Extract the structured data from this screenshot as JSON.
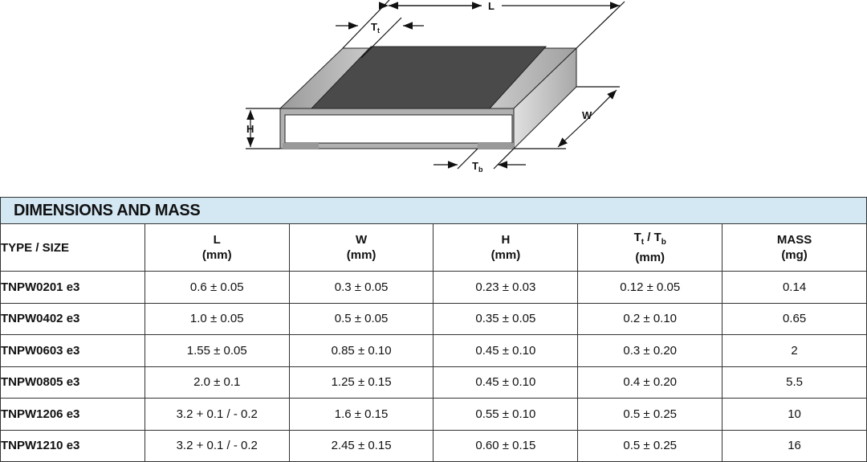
{
  "diagram": {
    "labels": {
      "L": "L",
      "W": "W",
      "H": "H",
      "Tt_main": "T",
      "Tt_sub": "t",
      "Tb_main": "T",
      "Tb_sub": "b"
    }
  },
  "table": {
    "title": "DIMENSIONS AND MASS",
    "columns": [
      {
        "label": "TYPE / SIZE",
        "unit": ""
      },
      {
        "label": "L",
        "unit": "(mm)"
      },
      {
        "label": "W",
        "unit": "(mm)"
      },
      {
        "label": "H",
        "unit": "(mm)"
      },
      {
        "label": "Tt / Tb",
        "label_main1": "T",
        "label_sub1": "t",
        "label_sep": " / ",
        "label_main2": "T",
        "label_sub2": "b",
        "unit": "(mm)"
      },
      {
        "label": "MASS",
        "unit": "(mg)"
      }
    ],
    "rows": [
      [
        "TNPW0201 e3",
        "0.6 ± 0.05",
        "0.3 ± 0.05",
        "0.23 ± 0.03",
        "0.12 ± 0.05",
        "0.14"
      ],
      [
        "TNPW0402 e3",
        "1.0 ± 0.05",
        "0.5 ± 0.05",
        "0.35 ± 0.05",
        "0.2 ± 0.10",
        "0.65"
      ],
      [
        "TNPW0603 e3",
        "1.55 ± 0.05",
        "0.85 ± 0.10",
        "0.45 ± 0.10",
        "0.3 ± 0.20",
        "2"
      ],
      [
        "TNPW0805 e3",
        "2.0 ± 0.1",
        "1.25 ± 0.15",
        "0.45 ± 0.10",
        "0.4 ± 0.20",
        "5.5"
      ],
      [
        "TNPW1206 e3",
        "3.2 + 0.1 / - 0.2",
        "1.6 ± 0.15",
        "0.55 ± 0.10",
        "0.5 ± 0.25",
        "10"
      ],
      [
        "TNPW1210 e3",
        "3.2 + 0.1 / - 0.2",
        "2.45 ± 0.15",
        "0.60 ± 0.15",
        "0.5 ± 0.25",
        "16"
      ]
    ]
  },
  "colors": {
    "header_band": "#d4e8f4",
    "resistive_layer": "#4a4a4a",
    "terminal": "#b8b8b8"
  }
}
